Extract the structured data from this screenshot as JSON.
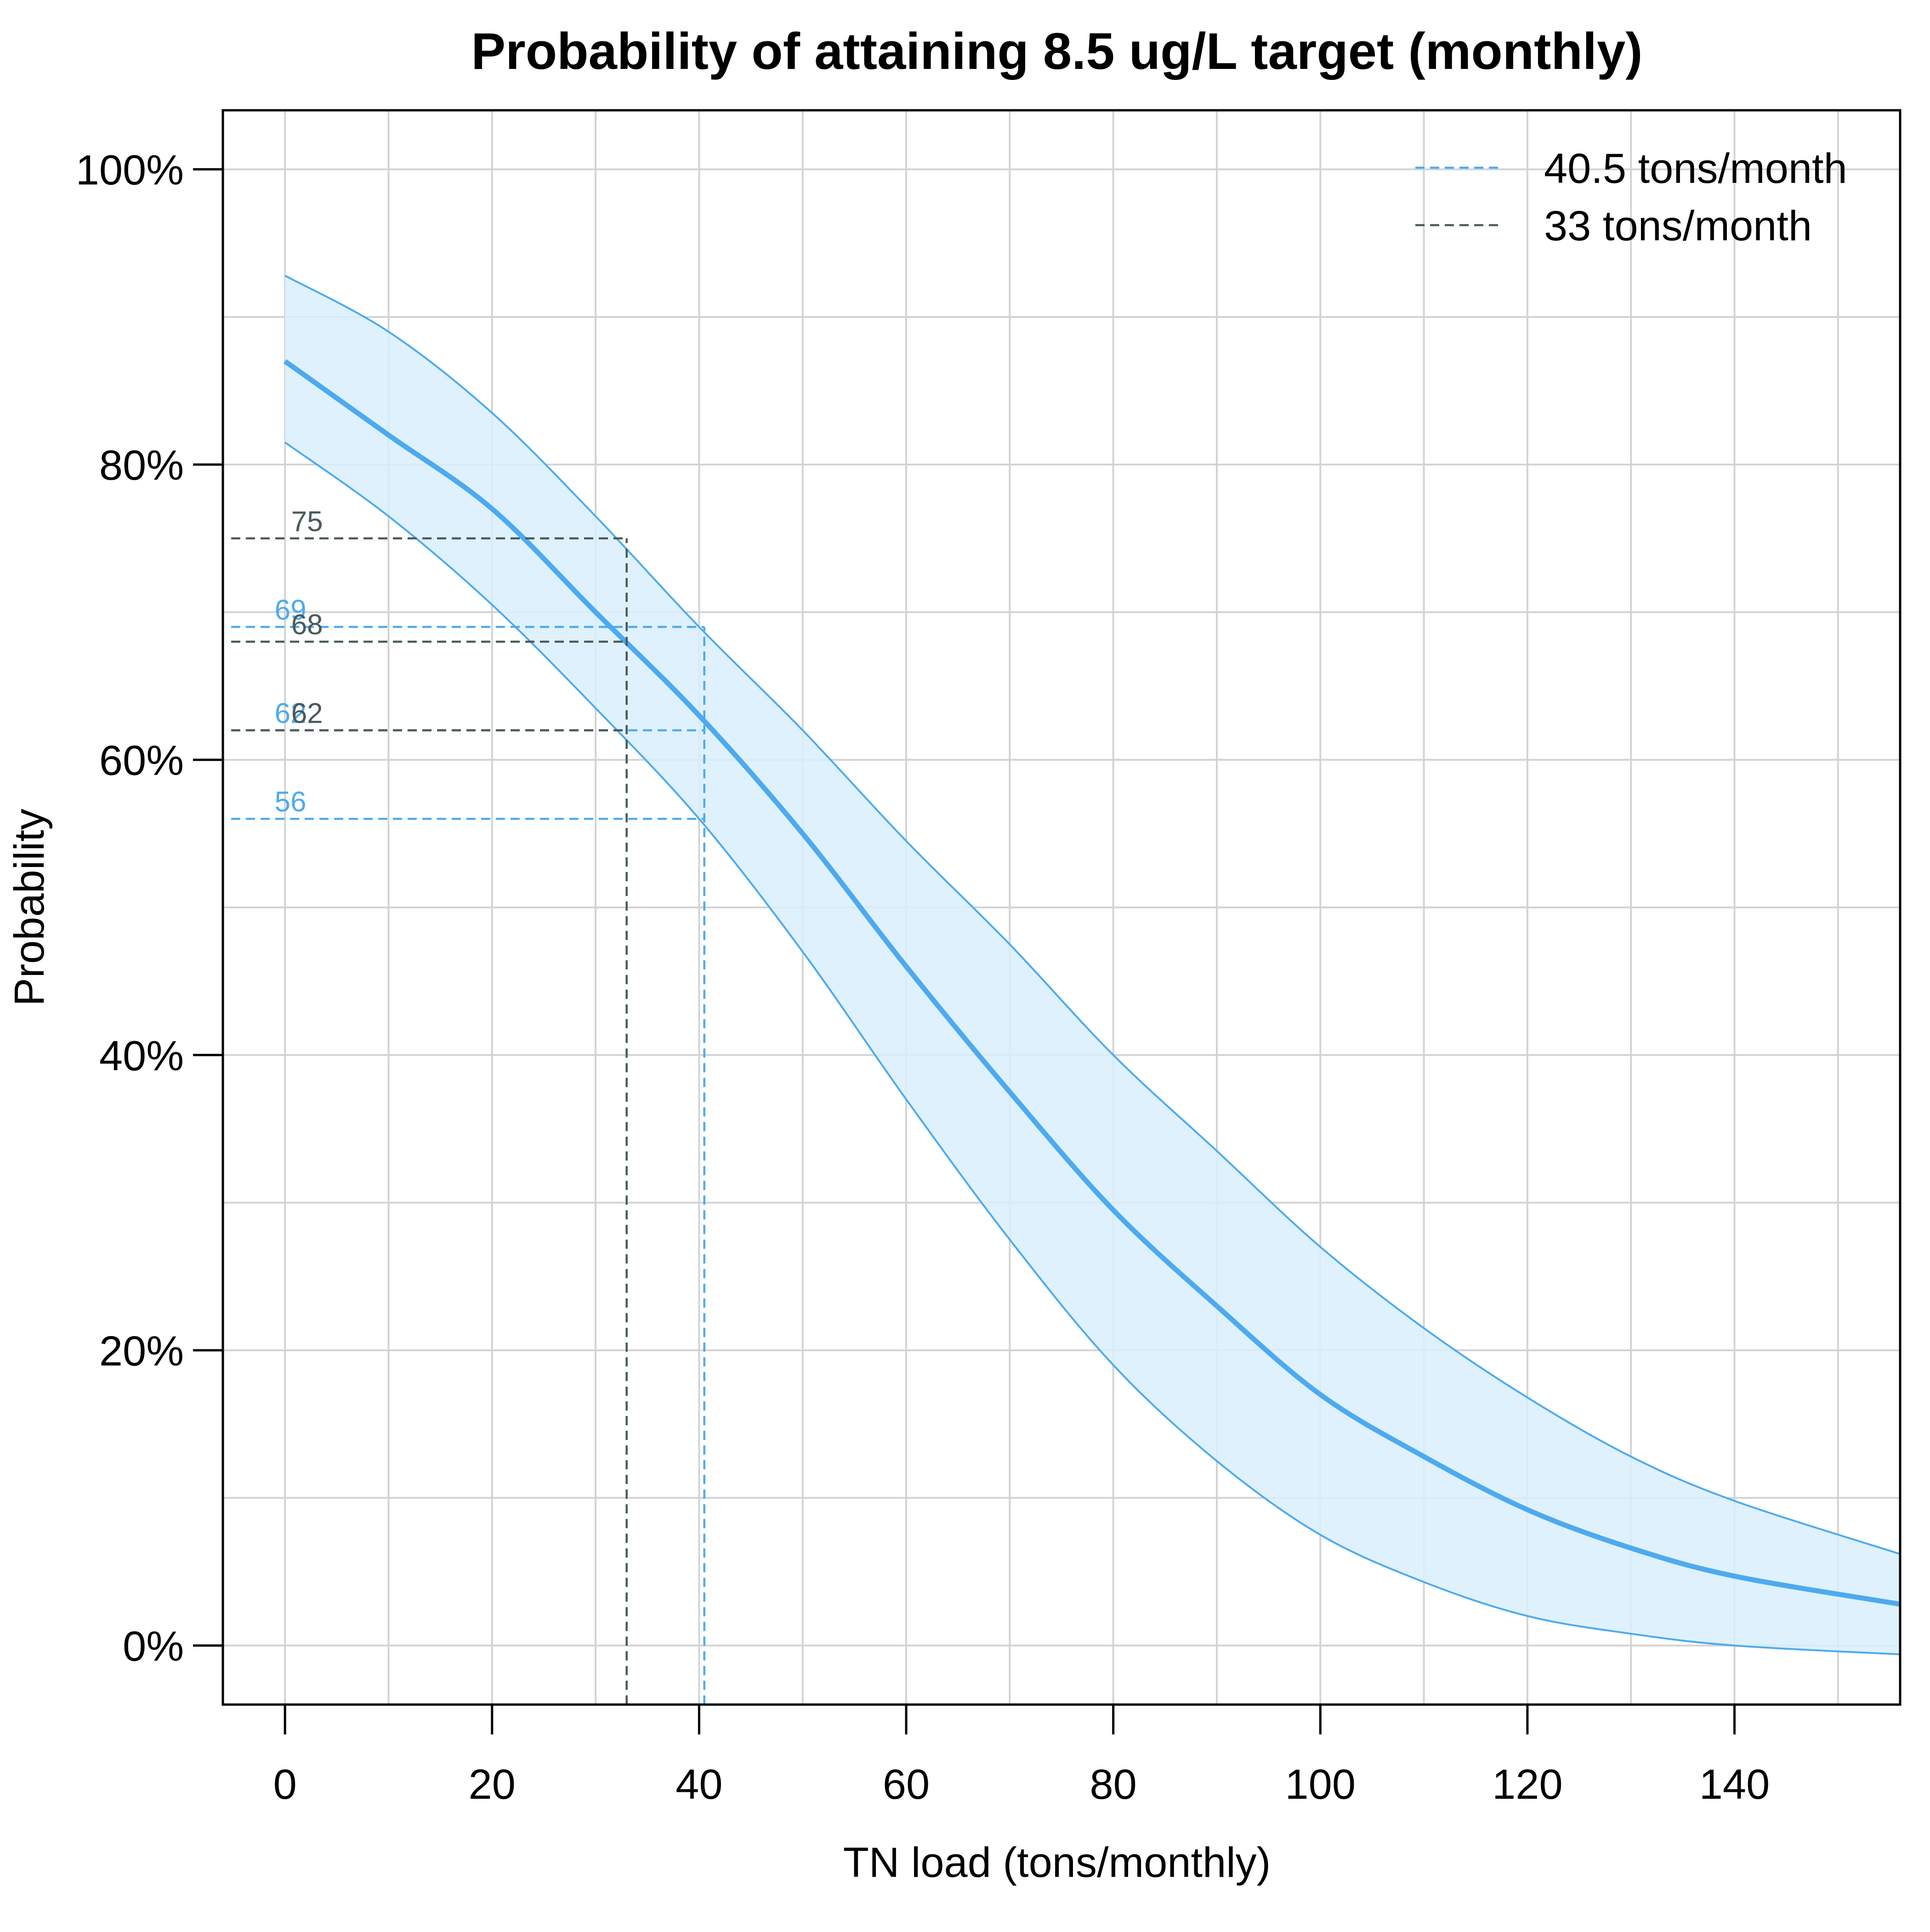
{
  "chart_data": {
    "type": "line",
    "title": "Probability of attaining 8.5 ug/L target (monthly)",
    "xlabel": "TN load (tons/monthly)",
    "ylabel": "Probability",
    "xlim": [
      -6,
      156
    ],
    "ylim": [
      -0.04,
      1.04
    ],
    "xticks": [
      0,
      20,
      40,
      60,
      80,
      100,
      120,
      140
    ],
    "xtick_labels": [
      "0",
      "20",
      "40",
      "60",
      "80",
      "100",
      "120",
      "140"
    ],
    "yticks": [
      0,
      0.2,
      0.4,
      0.6,
      0.8,
      1.0
    ],
    "ytick_labels": [
      "0%",
      "20%",
      "40%",
      "60%",
      "80%",
      "100%"
    ],
    "x_gridlines": [
      0,
      10,
      20,
      30,
      40,
      50,
      60,
      70,
      80,
      90,
      100,
      110,
      120,
      130,
      140,
      150
    ],
    "y_gridlines": [
      0,
      0.1,
      0.2,
      0.3,
      0.4,
      0.5,
      0.6,
      0.7,
      0.8,
      0.9,
      1.0
    ],
    "grid": true,
    "colors": {
      "curve": "#4daaf0",
      "band_fill": "#d9eefc",
      "dark": "#4a5a5a",
      "grid": "#d3d3d3"
    },
    "x": [
      0,
      10,
      20,
      30,
      40,
      50,
      60,
      70,
      80,
      90,
      100,
      110,
      120,
      130,
      140,
      156
    ],
    "series": [
      {
        "role": "fit",
        "values": [
          0.87,
          0.82,
          0.77,
          0.7,
          0.63,
          0.55,
          0.46,
          0.375,
          0.295,
          0.23,
          0.17,
          0.128,
          0.092,
          0.066,
          0.047,
          0.028
        ]
      },
      {
        "role": "upper",
        "values": [
          0.928,
          0.89,
          0.835,
          0.765,
          0.69,
          0.62,
          0.545,
          0.475,
          0.4,
          0.335,
          0.27,
          0.215,
          0.168,
          0.128,
          0.098,
          0.062
        ]
      },
      {
        "role": "lower",
        "values": [
          0.815,
          0.765,
          0.705,
          0.635,
          0.56,
          0.47,
          0.37,
          0.275,
          0.19,
          0.125,
          0.075,
          0.043,
          0.02,
          0.008,
          0.0,
          -0.006
        ]
      }
    ],
    "reference_lines": [
      {
        "name": "40.5 tons/month",
        "x": 40.5,
        "values": [
          0.69,
          0.62,
          0.56
        ],
        "labels": [
          "69",
          "62",
          "56"
        ],
        "color": "#4daaf0"
      },
      {
        "name": "33 tons/month",
        "x": 33,
        "values": [
          0.75,
          0.68,
          0.62
        ],
        "labels": [
          "75",
          "68",
          "62"
        ],
        "color": "#4a5a5a"
      }
    ],
    "legend_position": "top-right"
  }
}
